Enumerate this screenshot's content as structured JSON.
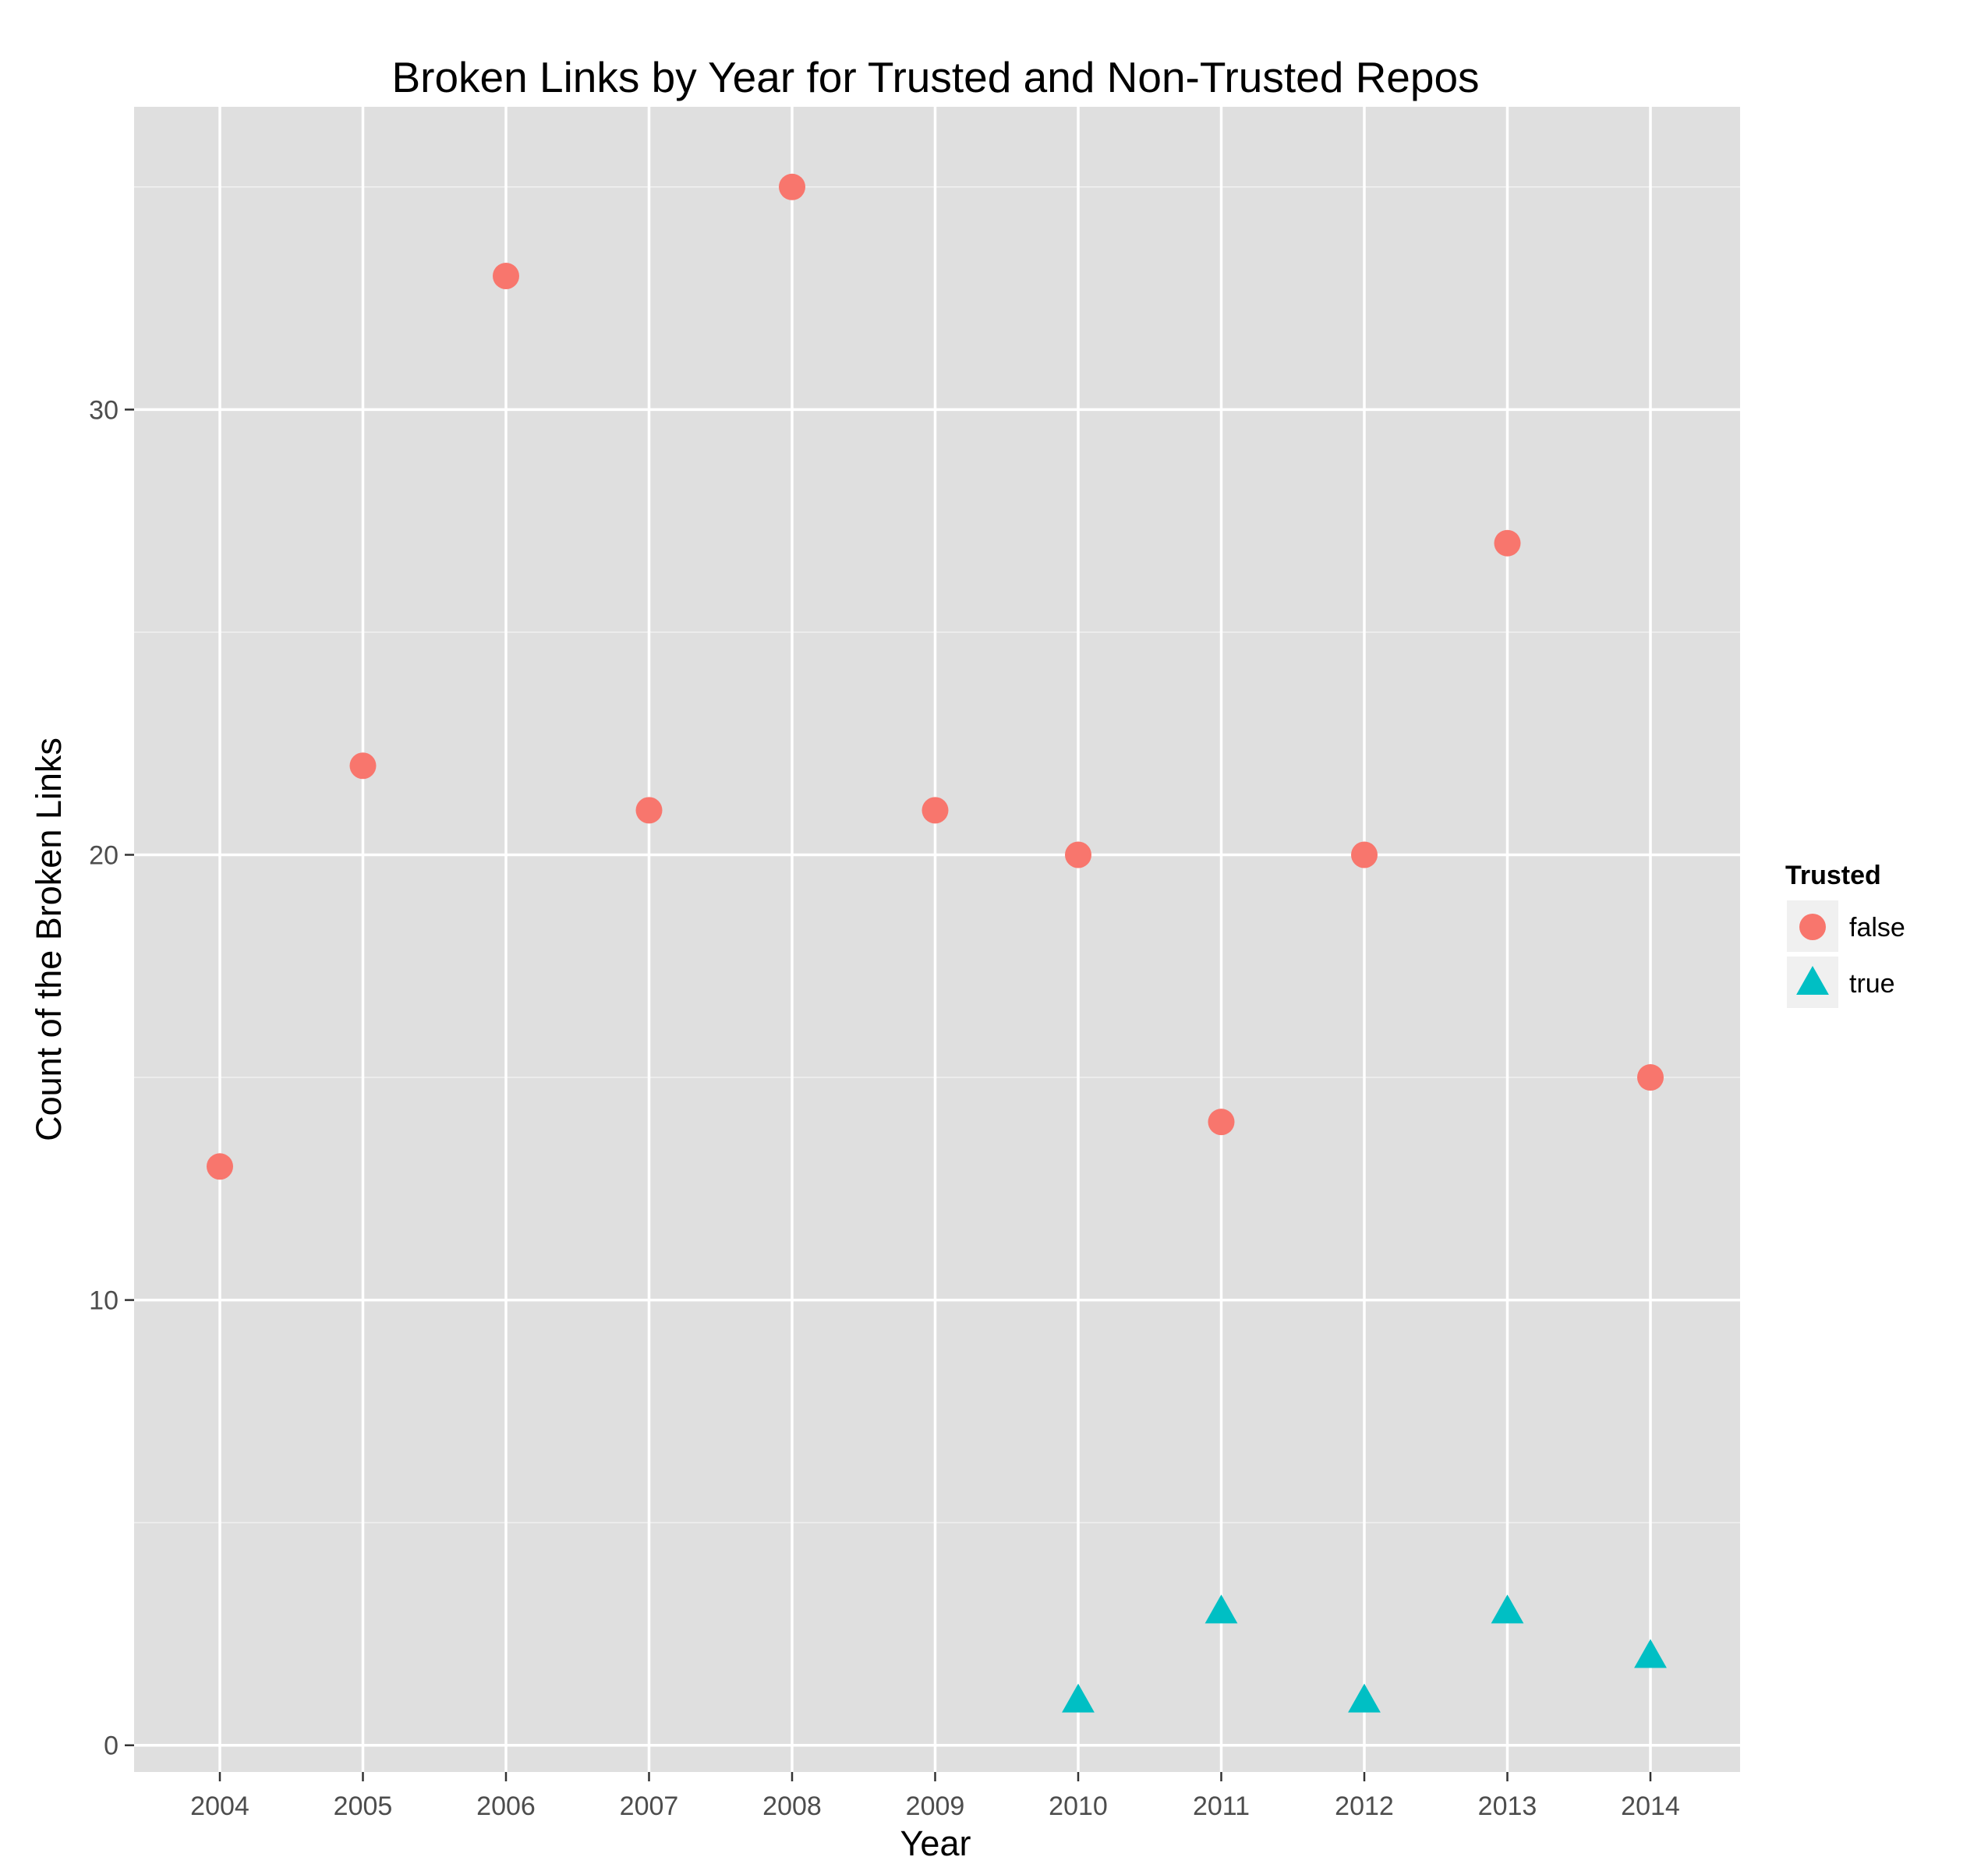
{
  "chart_data": {
    "type": "scatter",
    "title": "Broken Links by Year for Trusted and Non-Trusted Repos",
    "xlabel": "Year",
    "ylabel": "Count of the Broken Links",
    "x_categories": [
      "2004",
      "2005",
      "2006",
      "2007",
      "2008",
      "2009",
      "2010",
      "2011",
      "2012",
      "2013",
      "2014"
    ],
    "y_ticks": [
      0,
      10,
      20,
      30
    ],
    "ylim": [
      -0.6,
      36.8
    ],
    "grid": true,
    "legend": {
      "title": "Trusted",
      "placement": "right"
    },
    "series": [
      {
        "name": "false",
        "shape": "circle",
        "color": "#F8766D",
        "points": [
          {
            "x": "2004",
            "y": 13
          },
          {
            "x": "2005",
            "y": 22
          },
          {
            "x": "2006",
            "y": 33
          },
          {
            "x": "2007",
            "y": 21
          },
          {
            "x": "2008",
            "y": 35
          },
          {
            "x": "2009",
            "y": 21
          },
          {
            "x": "2010",
            "y": 20
          },
          {
            "x": "2011",
            "y": 14
          },
          {
            "x": "2012",
            "y": 20
          },
          {
            "x": "2013",
            "y": 27
          },
          {
            "x": "2014",
            "y": 15
          }
        ]
      },
      {
        "name": "true",
        "shape": "triangle",
        "color": "#00BFC4",
        "points": [
          {
            "x": "2010",
            "y": 1
          },
          {
            "x": "2011",
            "y": 3
          },
          {
            "x": "2012",
            "y": 1
          },
          {
            "x": "2013",
            "y": 3
          },
          {
            "x": "2014",
            "y": 2
          }
        ]
      }
    ]
  },
  "colors": {
    "panel_background": "#DFDFDF",
    "grid": "#FFFFFF",
    "false_series": "#F8766D",
    "true_series": "#00BFC4",
    "legend_key_background": "#F0F0F0"
  }
}
